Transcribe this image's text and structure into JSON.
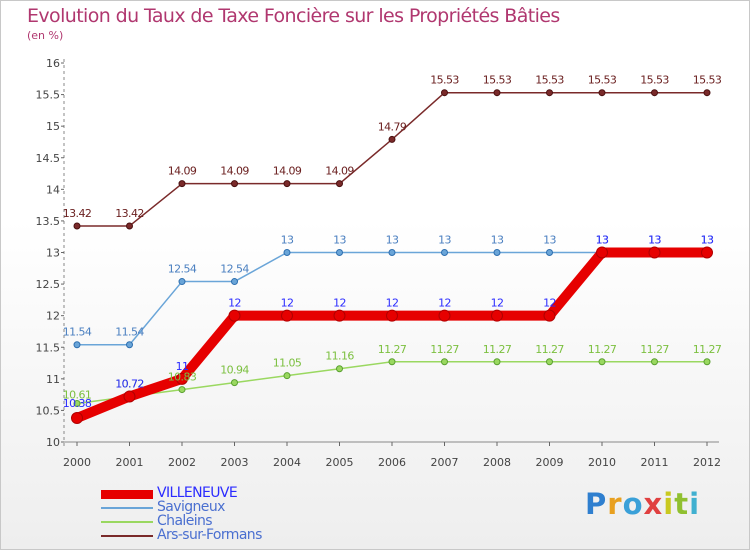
{
  "header": {
    "title": "Evolution du Taux de Taxe Foncière sur les Propriétés Bâties",
    "subtitle": "(en %)"
  },
  "logo": {
    "text": "Proxiti",
    "letters": [
      {
        "ch": "P",
        "color": "#2f7fcf"
      },
      {
        "ch": "r",
        "color": "#e8a020"
      },
      {
        "ch": "o",
        "color": "#3aa0d8"
      },
      {
        "ch": "x",
        "color": "#e04040"
      },
      {
        "ch": "i",
        "color": "#c9c920"
      },
      {
        "ch": "t",
        "color": "#90c030"
      },
      {
        "ch": "i",
        "color": "#40b0d0"
      }
    ]
  },
  "chart_data": {
    "type": "line",
    "title": "Evolution du Taux de Taxe Foncière sur les Propriétés Bâties",
    "ylabel": "(en %)",
    "xlabel": "",
    "ylim": [
      10,
      16
    ],
    "yticks": [
      "10",
      "10.5",
      "11",
      "11.5",
      "12",
      "12.5",
      "13",
      "13.5",
      "14",
      "14.5",
      "15",
      "15.5",
      "16"
    ],
    "categories": [
      "2000",
      "2001",
      "2002",
      "2003",
      "2004",
      "2005",
      "2006",
      "2007",
      "2008",
      "2009",
      "2010",
      "2011",
      "2012"
    ],
    "grid": false,
    "legend_position": "bottom-left",
    "series": [
      {
        "name": "Ars-sur-Formans",
        "color": "#7a2a2a",
        "text_color": "#6b2020",
        "values": [
          13.42,
          13.42,
          14.09,
          14.09,
          14.09,
          14.09,
          14.79,
          15.53,
          15.53,
          15.53,
          15.53,
          15.53,
          15.53
        ],
        "labels": [
          "13.42",
          "13.42",
          "14.09",
          "14.09",
          "14.09",
          "14.09",
          "14.79",
          "15.53",
          "15.53",
          "15.53",
          "15.53",
          "15.53",
          "15.53"
        ]
      },
      {
        "name": "Savigneux",
        "color": "#6aa5d8",
        "text_color": "#4a7fc0",
        "values": [
          11.54,
          11.54,
          12.54,
          12.54,
          13,
          13,
          13,
          13,
          13,
          13,
          13,
          13,
          13
        ],
        "labels": [
          "11.54",
          "11.54",
          "12.54",
          "12.54",
          "13",
          "13",
          "13",
          "13",
          "13",
          "13",
          "13",
          "13",
          "13"
        ]
      },
      {
        "name": "Chaleins",
        "color": "#9ad860",
        "text_color": "#7cc040",
        "values": [
          10.61,
          10.72,
          10.83,
          10.94,
          11.05,
          11.16,
          11.27,
          11.27,
          11.27,
          11.27,
          11.27,
          11.27,
          11.27
        ],
        "labels": [
          "10.61",
          "10.72",
          "10.83",
          "10.94",
          "11.05",
          "11.16",
          "11.27",
          "11.27",
          "11.27",
          "11.27",
          "11.27",
          "11.27",
          "11.27"
        ]
      },
      {
        "name": "VILLENEUVE",
        "color": "#e60000",
        "text_color": "#2b2bff",
        "values": [
          10.38,
          10.72,
          11,
          12,
          12,
          12,
          12,
          12,
          12,
          12,
          13,
          13,
          13
        ],
        "labels": [
          "10.38",
          "10.72",
          "11",
          "12",
          "12",
          "12",
          "12",
          "12",
          "12",
          "12",
          "13",
          "13",
          "13"
        ]
      }
    ]
  }
}
